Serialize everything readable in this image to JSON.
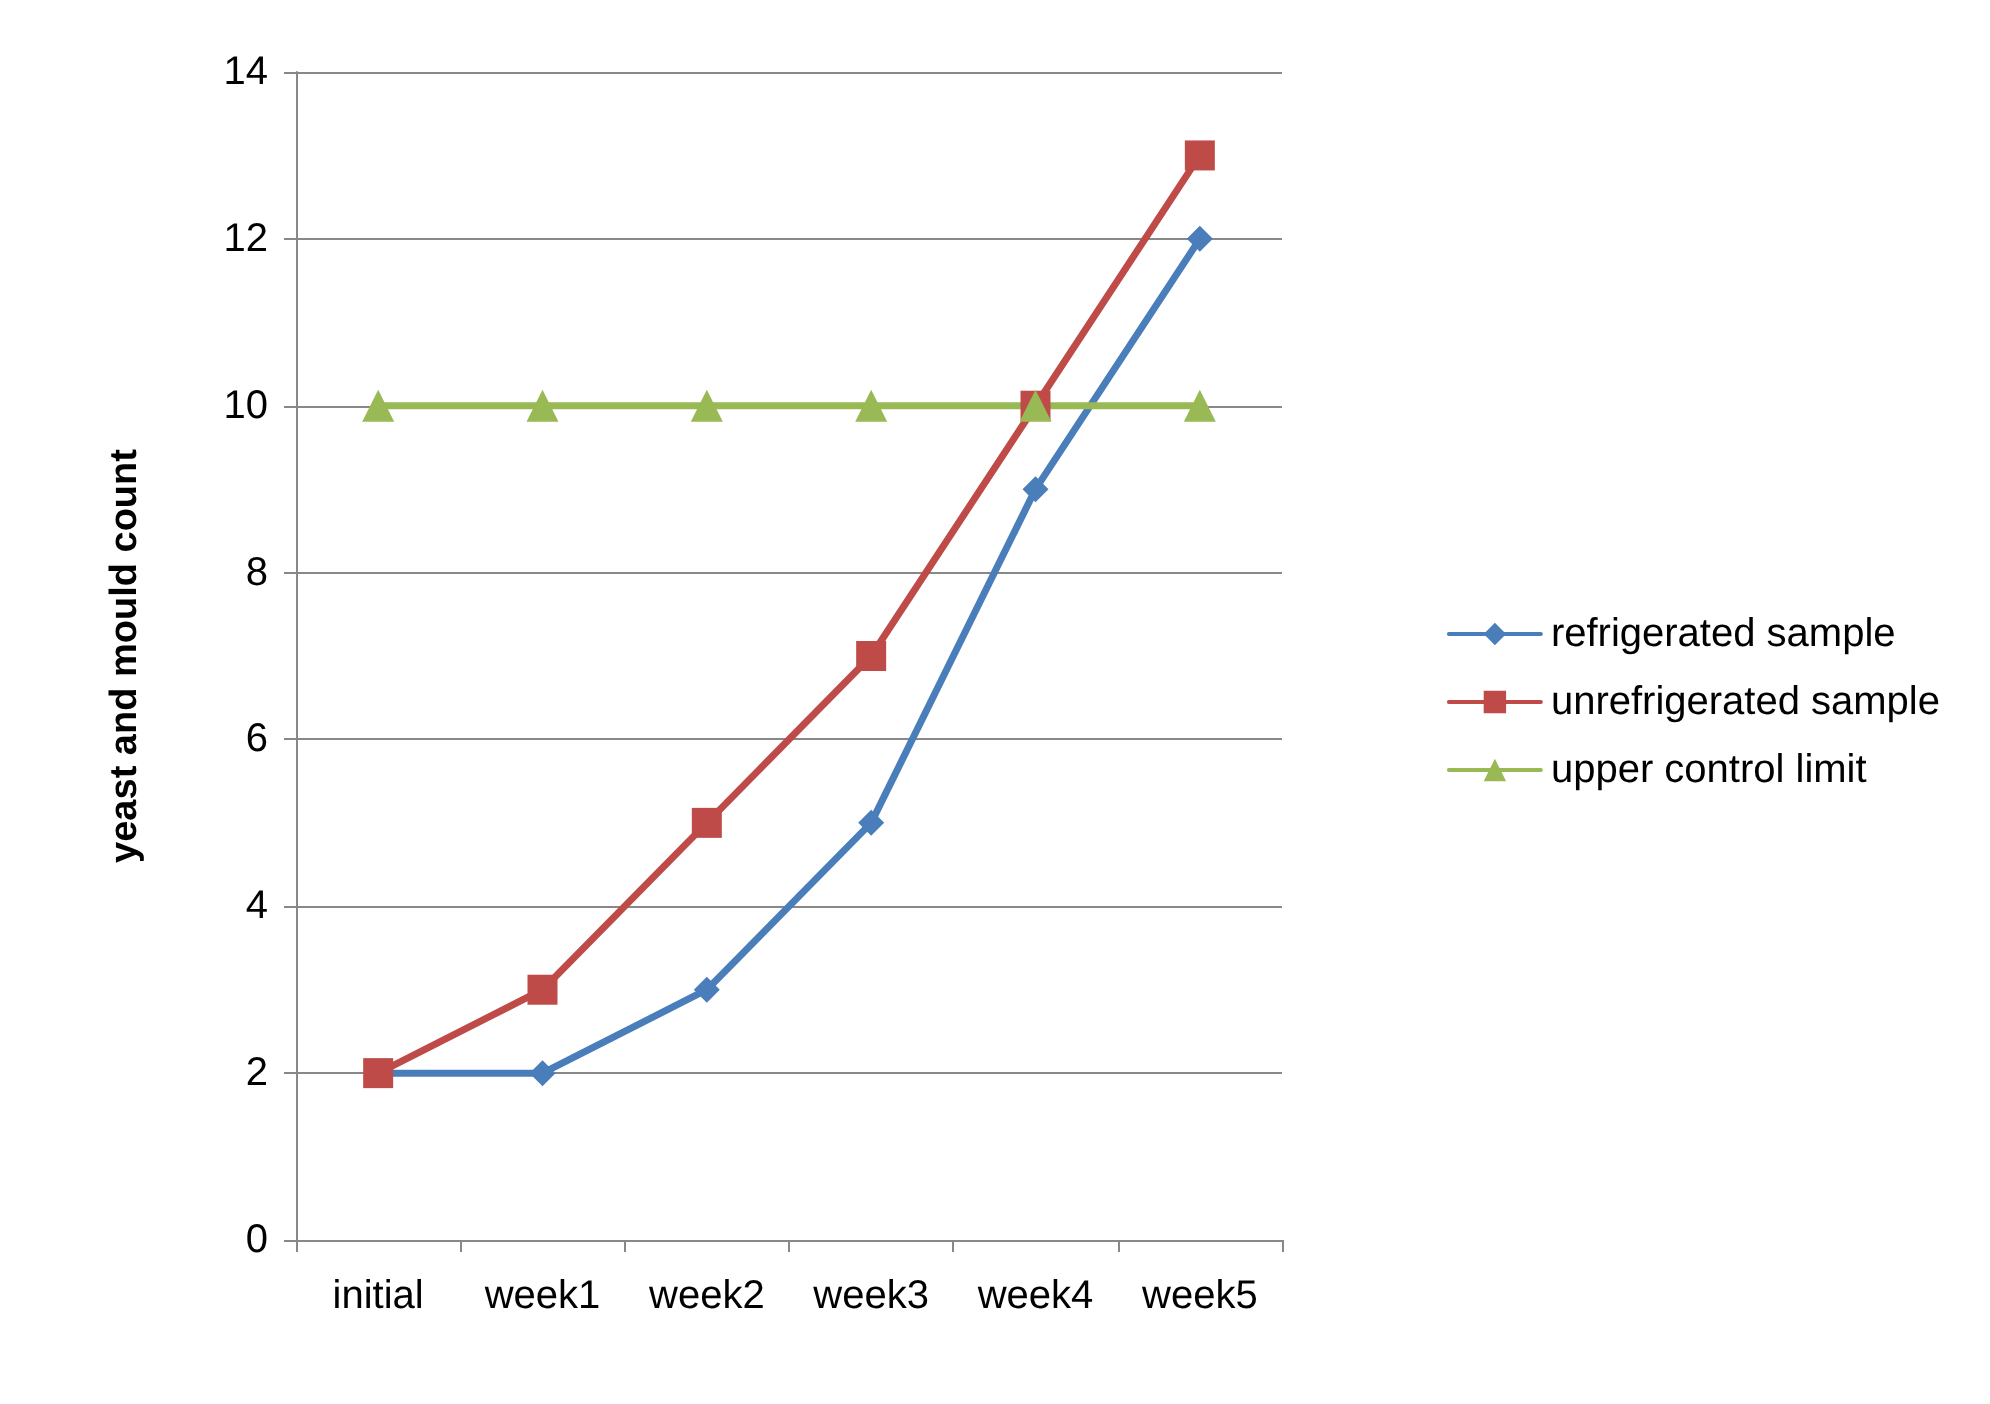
{
  "chart_data": {
    "type": "line",
    "ylabel": "yeast and mould count",
    "categories": [
      "initial",
      "week1",
      "week2",
      "week3",
      "week4",
      "week5"
    ],
    "series": [
      {
        "name": "refrigerated sample",
        "color": "#4a7ebb",
        "marker": "diamond",
        "values": [
          2,
          2,
          3,
          5,
          9,
          12
        ]
      },
      {
        "name": "unrefrigerated sample",
        "color": "#be4b48",
        "marker": "square",
        "values": [
          2,
          3,
          5,
          7,
          10,
          13
        ]
      },
      {
        "name": "upper control limit",
        "color": "#98b954",
        "marker": "triangle",
        "values": [
          10,
          10,
          10,
          10,
          10,
          10
        ]
      }
    ],
    "ylim": [
      0,
      14
    ],
    "yticks": [
      0,
      2,
      4,
      6,
      8,
      10,
      12,
      14
    ],
    "grid": "y",
    "legend": "right",
    "line_style": "solid"
  }
}
